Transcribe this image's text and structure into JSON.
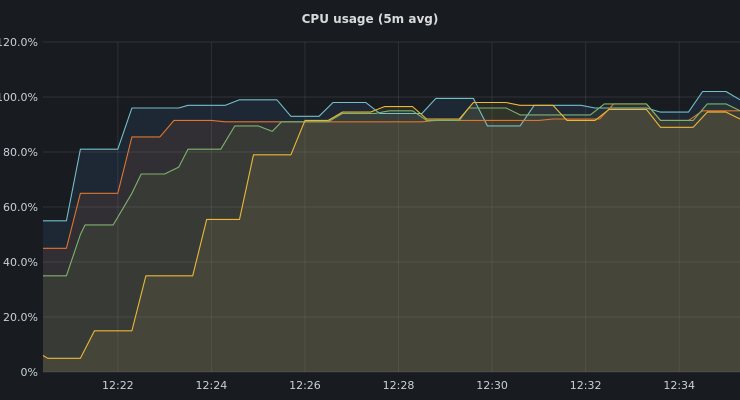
{
  "panel": {
    "title": "CPU usage (5m avg)"
  },
  "chart_data": {
    "type": "area",
    "title": "CPU usage (5m avg)",
    "xlabel": "",
    "ylabel": "",
    "x_ticks": [
      "12:22",
      "12:24",
      "12:26",
      "12:28",
      "12:30",
      "12:32",
      "12:34"
    ],
    "x_tick_minutes": [
      2,
      4,
      6,
      8,
      10,
      12,
      14
    ],
    "y_ticks": [
      "0%",
      "20.0%",
      "40.0%",
      "60.0%",
      "80.0%",
      "100.0%",
      "120.0%"
    ],
    "y_tick_values": [
      0,
      20,
      40,
      60,
      80,
      100,
      120
    ],
    "ylim": [
      0,
      120
    ],
    "xlim_minutes": [
      0.4,
      15.3
    ],
    "grid": true,
    "legend": "none",
    "series": [
      {
        "color": "#5794f2",
        "line_color": "#73bfc7",
        "points": [
          [
            0.4,
            55
          ],
          [
            0.9,
            55
          ],
          [
            1.2,
            81
          ],
          [
            2,
            81
          ],
          [
            2.3,
            96
          ],
          [
            3.3,
            96
          ],
          [
            3.5,
            97
          ],
          [
            4.3,
            97
          ],
          [
            4.6,
            99
          ],
          [
            5.4,
            99
          ],
          [
            5.7,
            93
          ],
          [
            6.3,
            93
          ],
          [
            6.6,
            98
          ],
          [
            7.3,
            98
          ],
          [
            7.6,
            94
          ],
          [
            8.5,
            94
          ],
          [
            8.8,
            99.5
          ],
          [
            9.6,
            99.5
          ],
          [
            9.9,
            89.5
          ],
          [
            10.6,
            89.5
          ],
          [
            10.9,
            97
          ],
          [
            11.9,
            97
          ],
          [
            12.2,
            96
          ],
          [
            13.3,
            96
          ],
          [
            13.6,
            94.5
          ],
          [
            14.2,
            94.5
          ],
          [
            14.5,
            102
          ],
          [
            15.0,
            102
          ],
          [
            15.3,
            99
          ]
        ]
      },
      {
        "color": "#e0752d",
        "line_color": "#e0752d",
        "points": [
          [
            0.4,
            45
          ],
          [
            0.9,
            45
          ],
          [
            1.2,
            65
          ],
          [
            2,
            65
          ],
          [
            2.3,
            85.5
          ],
          [
            2.9,
            85.5
          ],
          [
            3.2,
            91.5
          ],
          [
            4,
            91.5
          ],
          [
            4.3,
            91
          ],
          [
            8.5,
            91
          ],
          [
            8.8,
            91.5
          ],
          [
            11,
            91.5
          ],
          [
            11.3,
            92
          ],
          [
            12.3,
            92
          ],
          [
            12.6,
            97.5
          ],
          [
            13.3,
            97.5
          ],
          [
            13.6,
            91.5
          ],
          [
            14.2,
            91.5
          ],
          [
            14.5,
            95
          ],
          [
            15.3,
            95
          ]
        ]
      },
      {
        "color": "#73a84a",
        "line_color": "#7eb26d",
        "points": [
          [
            0.4,
            35
          ],
          [
            0.9,
            35
          ],
          [
            1.2,
            50
          ],
          [
            1.3,
            53.5
          ],
          [
            1.9,
            53.5
          ],
          [
            2.3,
            65
          ],
          [
            2.5,
            72
          ],
          [
            3,
            72
          ],
          [
            3.3,
            74.5
          ],
          [
            3.5,
            81
          ],
          [
            4.2,
            81
          ],
          [
            4.5,
            89.5
          ],
          [
            5,
            89.5
          ],
          [
            5.3,
            87.5
          ],
          [
            5.5,
            91
          ],
          [
            6.5,
            91
          ],
          [
            6.8,
            94
          ],
          [
            7.5,
            94
          ],
          [
            7.8,
            95
          ],
          [
            8.3,
            95
          ],
          [
            8.6,
            91.5
          ],
          [
            9.3,
            91.5
          ],
          [
            9.5,
            96
          ],
          [
            10.3,
            96
          ],
          [
            10.6,
            93.5
          ],
          [
            12.1,
            93.5
          ],
          [
            12.4,
            97.5
          ],
          [
            13.3,
            97.5
          ],
          [
            13.6,
            91.5
          ],
          [
            14.3,
            91.5
          ],
          [
            14.6,
            97.5
          ],
          [
            15.0,
            97.5
          ],
          [
            15.3,
            95
          ]
        ]
      },
      {
        "color": "#b9a060",
        "line_color": "#eab839",
        "points": [
          [
            0.4,
            6
          ],
          [
            0.5,
            5
          ],
          [
            1.2,
            5
          ],
          [
            1.5,
            15
          ],
          [
            2.3,
            15
          ],
          [
            2.6,
            35
          ],
          [
            3.6,
            35
          ],
          [
            3.9,
            55.5
          ],
          [
            4.6,
            55.5
          ],
          [
            4.9,
            79
          ],
          [
            5.7,
            79
          ],
          [
            6,
            91.5
          ],
          [
            6.5,
            91.5
          ],
          [
            6.8,
            94.5
          ],
          [
            7.4,
            94.5
          ],
          [
            7.7,
            96.5
          ],
          [
            8.3,
            96.5
          ],
          [
            8.6,
            92
          ],
          [
            9.3,
            92
          ],
          [
            9.6,
            98
          ],
          [
            10.3,
            98
          ],
          [
            10.6,
            97
          ],
          [
            11.3,
            97
          ],
          [
            11.6,
            91.5
          ],
          [
            12.2,
            91.5
          ],
          [
            12.5,
            95.5
          ],
          [
            13.3,
            95.5
          ],
          [
            13.6,
            89
          ],
          [
            14.3,
            89
          ],
          [
            14.6,
            94.5
          ],
          [
            15.0,
            94.5
          ],
          [
            15.3,
            92
          ]
        ]
      }
    ]
  }
}
